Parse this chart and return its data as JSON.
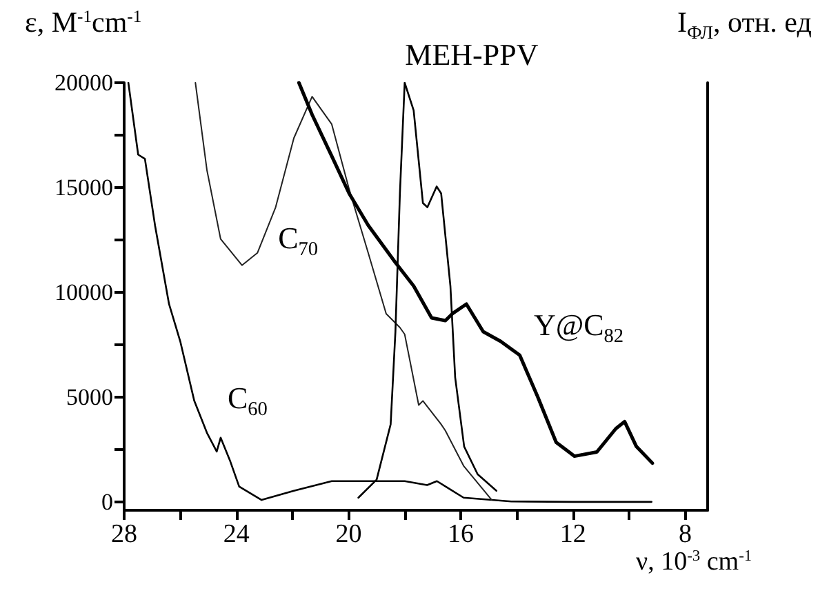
{
  "chart_data": {
    "type": "line",
    "xlabel": "ν, 10$^{-3}$ cm$^{-1}$",
    "ylabel": "ε, M$^{-1}$cm$^{-1}$",
    "y2label": "I$_{ФЛ}$, отн. ед",
    "xlim": [
      28,
      7.2
    ],
    "xticks": [
      28,
      {
        "value": 26,
        "label": null
      },
      24,
      {
        "value": 22,
        "label": null
      },
      20,
      {
        "value": 18,
        "label": null
      },
      16,
      {
        "value": 14,
        "label": null
      },
      12,
      {
        "value": 10,
        "label": null
      },
      8
    ],
    "ylim": [
      -400,
      20000
    ],
    "yticks": [
      0,
      {
        "value": 2500,
        "label": null
      },
      5000,
      {
        "value": 7500,
        "label": null
      },
      10000,
      {
        "value": 12500,
        "label": null
      },
      15000,
      {
        "value": 17500,
        "label": null
      },
      20000
    ],
    "grid": false,
    "legend": false,
    "marker": "none",
    "line_style": "solid",
    "series": [
      {
        "name": "C$_{60}$",
        "color": "#000000",
        "x": [
          27.85,
          27.5,
          27.26,
          26.9,
          26.4,
          26.0,
          25.5,
          25.05,
          24.7,
          24.56,
          24.23,
          23.9,
          23.1,
          21.95,
          20.6,
          18.0,
          17.2,
          16.85,
          16.5,
          15.9,
          14.2,
          12.0,
          9.2
        ],
        "values": [
          20000,
          16570,
          16370,
          13200,
          9440,
          7660,
          4820,
          3300,
          2400,
          3060,
          1980,
          730,
          90,
          530,
          990,
          990,
          800,
          990,
          700,
          200,
          20,
          0,
          0
        ]
      },
      {
        "name": "C$_{70}$",
        "color": "#222222",
        "x": [
          25.46,
          25.05,
          24.56,
          23.8,
          23.25,
          22.6,
          21.95,
          21.3,
          20.6,
          19.98,
          19.3,
          18.66,
          18.17,
          18.0,
          17.5,
          17.35,
          16.7,
          16.55,
          15.9,
          14.9
        ],
        "values": [
          20000,
          15840,
          12540,
          11290,
          11880,
          14060,
          17360,
          19340,
          18020,
          14920,
          11880,
          8980,
          8320,
          8000,
          4620,
          4820,
          3700,
          3400,
          1720,
          100
        ]
      },
      {
        "name": "Y@C$_{82}$",
        "color": "#000000",
        "x": [
          21.77,
          21.3,
          20.6,
          19.98,
          19.3,
          18.33,
          17.68,
          17.04,
          16.55,
          16.3,
          15.8,
          15.2,
          14.58,
          13.9,
          13.26,
          12.6,
          11.95,
          11.15,
          10.47,
          10.16,
          9.74,
          9.17
        ],
        "values": [
          20000,
          18480,
          16500,
          14720,
          13200,
          11420,
          10300,
          8780,
          8650,
          8980,
          9440,
          8120,
          7660,
          7000,
          5020,
          2840,
          2180,
          2380,
          3500,
          3830,
          2640,
          1850
        ]
      },
      {
        "name": "MEH-PPV",
        "color": "#000000",
        "x": [
          19.65,
          19.0,
          18.5,
          18.33,
          18.17,
          18.0,
          17.68,
          17.35,
          17.19,
          16.86,
          16.7,
          16.37,
          16.2,
          15.88,
          15.4,
          14.73
        ],
        "values": [
          200,
          1060,
          3700,
          8120,
          14720,
          20000,
          18680,
          14260,
          14060,
          15050,
          14720,
          10300,
          5940,
          2640,
          1320,
          530
        ]
      }
    ]
  }
}
